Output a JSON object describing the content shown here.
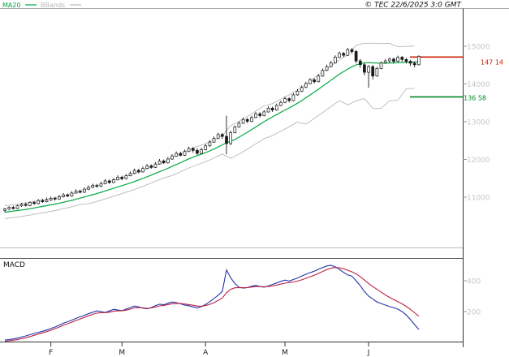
{
  "header": {
    "legend": [
      {
        "label": "MA20",
        "color": "#00A844"
      },
      {
        "label": "BBands",
        "color": "#B8B8B8"
      }
    ],
    "timestamp": "© TEC 22/6/2025 3:0 GMT"
  },
  "chart_data": {
    "type": "candlestick",
    "title": "",
    "xlabel": "",
    "ylabel": "",
    "price_panel": {
      "ylim": [
        9650,
        16000
      ],
      "yticks": [
        {
          "label": "15000",
          "value": 15000
        },
        {
          "label": "14000",
          "value": 14000
        },
        {
          "label": "13000",
          "value": 13000
        },
        {
          "label": "12000",
          "value": 12000
        },
        {
          "label": "11000",
          "value": 11000
        }
      ],
      "levels": [
        {
          "label": "147 14",
          "value": 14714,
          "color": "#CC2200"
        },
        {
          "label": "136 58",
          "value": 13658,
          "color": "#008822"
        }
      ],
      "candle_color": "#1a1a1a",
      "candles": [
        [
          10650,
          10720,
          10600,
          10690
        ],
        [
          10690,
          10760,
          10650,
          10730
        ],
        [
          10730,
          10770,
          10670,
          10700
        ],
        [
          10700,
          10800,
          10680,
          10770
        ],
        [
          10770,
          10850,
          10740,
          10810
        ],
        [
          10810,
          10860,
          10750,
          10780
        ],
        [
          10780,
          10890,
          10760,
          10860
        ],
        [
          10860,
          10900,
          10800,
          10830
        ],
        [
          10830,
          10950,
          10810,
          10910
        ],
        [
          10910,
          10960,
          10850,
          10880
        ],
        [
          10880,
          10990,
          10860,
          10930
        ],
        [
          10930,
          11020,
          10900,
          10970
        ],
        [
          10970,
          11010,
          10910,
          10950
        ],
        [
          10950,
          11060,
          10930,
          11010
        ],
        [
          11010,
          11110,
          10990,
          11060
        ],
        [
          11060,
          11100,
          11000,
          11030
        ],
        [
          11030,
          11160,
          11010,
          11110
        ],
        [
          11110,
          11210,
          11090,
          11160
        ],
        [
          11160,
          11200,
          11100,
          11130
        ],
        [
          11130,
          11260,
          11110,
          11210
        ],
        [
          11210,
          11310,
          11190,
          11260
        ],
        [
          11260,
          11360,
          11240,
          11310
        ],
        [
          11310,
          11350,
          11250,
          11290
        ],
        [
          11290,
          11410,
          11270,
          11360
        ],
        [
          11360,
          11480,
          11340,
          11430
        ],
        [
          11430,
          11470,
          11350,
          11390
        ],
        [
          11390,
          11510,
          11370,
          11460
        ],
        [
          11460,
          11580,
          11440,
          11530
        ],
        [
          11530,
          11570,
          11450,
          11490
        ],
        [
          11490,
          11620,
          11470,
          11570
        ],
        [
          11570,
          11680,
          11550,
          11630
        ],
        [
          11630,
          11760,
          11610,
          11710
        ],
        [
          11710,
          11750,
          11630,
          11670
        ],
        [
          11670,
          11810,
          11650,
          11760
        ],
        [
          11760,
          11880,
          11740,
          11830
        ],
        [
          11830,
          11870,
          11750,
          11790
        ],
        [
          11790,
          11930,
          11770,
          11880
        ],
        [
          11880,
          12010,
          11860,
          11960
        ],
        [
          11960,
          12000,
          11880,
          11910
        ],
        [
          11910,
          12060,
          11890,
          12010
        ],
        [
          12010,
          12140,
          11990,
          12090
        ],
        [
          12090,
          12210,
          12070,
          12160
        ],
        [
          12160,
          12200,
          12080,
          12110
        ],
        [
          12110,
          12260,
          12090,
          12210
        ],
        [
          12210,
          12340,
          12190,
          12290
        ],
        [
          12290,
          12330,
          12180,
          12240
        ],
        [
          12240,
          12290,
          12120,
          12160
        ],
        [
          12160,
          12310,
          12140,
          12260
        ],
        [
          12260,
          12410,
          12240,
          12360
        ],
        [
          12360,
          12510,
          12340,
          12460
        ],
        [
          12460,
          12610,
          12440,
          12560
        ],
        [
          12560,
          12710,
          12540,
          12660
        ],
        [
          12660,
          12700,
          12540,
          12610
        ],
        [
          12610,
          13160,
          12140,
          12420
        ],
        [
          12420,
          12760,
          12380,
          12710
        ],
        [
          12710,
          12900,
          12690,
          12860
        ],
        [
          12860,
          13010,
          12840,
          12960
        ],
        [
          12960,
          13110,
          12940,
          13060
        ],
        [
          13060,
          13100,
          12960,
          13010
        ],
        [
          13010,
          13160,
          12990,
          13110
        ],
        [
          13110,
          13260,
          13090,
          13210
        ],
        [
          13210,
          13250,
          13110,
          13160
        ],
        [
          13160,
          13310,
          13140,
          13260
        ],
        [
          13260,
          13410,
          13240,
          13360
        ],
        [
          13360,
          13400,
          13260,
          13310
        ],
        [
          13310,
          13480,
          13290,
          13430
        ],
        [
          13430,
          13560,
          13410,
          13510
        ],
        [
          13510,
          13660,
          13490,
          13610
        ],
        [
          13610,
          13650,
          13510,
          13560
        ],
        [
          13560,
          13760,
          13540,
          13710
        ],
        [
          13710,
          13860,
          13690,
          13810
        ],
        [
          13810,
          13960,
          13790,
          13910
        ],
        [
          13910,
          14060,
          13890,
          14010
        ],
        [
          14010,
          14160,
          13990,
          14110
        ],
        [
          14110,
          14150,
          14010,
          14060
        ],
        [
          14060,
          14260,
          14040,
          14210
        ],
        [
          14210,
          14410,
          14190,
          14360
        ],
        [
          14360,
          14510,
          14340,
          14460
        ],
        [
          14460,
          14610,
          14440,
          14560
        ],
        [
          14560,
          14760,
          14540,
          14710
        ],
        [
          14710,
          14860,
          14690,
          14810
        ],
        [
          14810,
          14850,
          14710,
          14760
        ],
        [
          14760,
          14960,
          14740,
          14910
        ],
        [
          14910,
          14950,
          14800,
          14860
        ],
        [
          14860,
          14900,
          14550,
          14610
        ],
        [
          14610,
          14660,
          14430,
          14510
        ],
        [
          14510,
          14550,
          14230,
          14310
        ],
        [
          14310,
          14500,
          13900,
          14460
        ],
        [
          14460,
          14500,
          14120,
          14210
        ],
        [
          14210,
          14450,
          14190,
          14410
        ],
        [
          14410,
          14600,
          14390,
          14560
        ],
        [
          14560,
          14660,
          14540,
          14610
        ],
        [
          14610,
          14700,
          14560,
          14660
        ],
        [
          14660,
          14700,
          14540,
          14600
        ],
        [
          14600,
          14750,
          14580,
          14710
        ],
        [
          14710,
          14740,
          14590,
          14650
        ],
        [
          14650,
          14690,
          14540,
          14600
        ],
        [
          14600,
          14640,
          14480,
          14550
        ],
        [
          14550,
          14600,
          14440,
          14510
        ],
        [
          14510,
          14760,
          14490,
          14730
        ]
      ],
      "ma20": {
        "color": "#00A844",
        "values": [
          10600,
          10615,
          10630,
          10645,
          10660,
          10675,
          10695,
          10715,
          10735,
          10755,
          10775,
          10795,
          10815,
          10840,
          10865,
          10890,
          10915,
          10945,
          10975,
          11005,
          11035,
          11065,
          11095,
          11130,
          11165,
          11200,
          11235,
          11270,
          11305,
          11340,
          11375,
          11415,
          11455,
          11495,
          11540,
          11585,
          11630,
          11675,
          11720,
          11765,
          11815,
          11865,
          11915,
          11965,
          12015,
          12060,
          12100,
          12140,
          12180,
          12225,
          12275,
          12330,
          12385,
          12440,
          12480,
          12530,
          12590,
          12655,
          12720,
          12790,
          12860,
          12930,
          13000,
          13065,
          13130,
          13190,
          13250,
          13310,
          13365,
          13425,
          13490,
          13560,
          13635,
          13710,
          13785,
          13860,
          13940,
          14020,
          14100,
          14180,
          14260,
          14330,
          14395,
          14455,
          14505,
          14540,
          14560,
          14565,
          14560,
          14555,
          14550,
          14550,
          14555,
          14560,
          14565,
          14570,
          14575,
          14580,
          14585,
          14590
        ]
      },
      "bollinger": {
        "color": "#B8B8B8",
        "step": 2,
        "upper": [
          10770,
          10800,
          10830,
          10865,
          10905,
          10945,
          10985,
          11035,
          11085,
          11145,
          11245,
          11305,
          11375,
          11445,
          11515,
          11585,
          11665,
          11750,
          11840,
          11930,
          12055,
          12155,
          12255,
          12340,
          12420,
          12515,
          12625,
          12900,
          13010,
          13140,
          13280,
          13420,
          13480,
          13600,
          13715,
          13840,
          13985,
          14165,
          14320,
          14480,
          14640,
          14775,
          15025,
          15080,
          15080,
          15070,
          15075,
          14985,
          14995,
          15005
        ],
        "lower": [
          10430,
          10460,
          10490,
          10525,
          10565,
          10605,
          10645,
          10695,
          10745,
          10805,
          10825,
          10885,
          10955,
          11025,
          11095,
          11165,
          11245,
          11330,
          11420,
          11510,
          11575,
          11675,
          11775,
          11860,
          11940,
          12035,
          12145,
          12030,
          12140,
          12270,
          12410,
          12550,
          12630,
          12750,
          12865,
          12990,
          12935,
          13085,
          13240,
          13400,
          13560,
          13445,
          13555,
          13610,
          13360,
          13350,
          13555,
          13565,
          13875,
          13885
        ]
      }
    },
    "macd_panel": {
      "label": "MACD",
      "ylim": [
        -50,
        550
      ],
      "yticks": [
        {
          "label": "400",
          "value": 400
        },
        {
          "label": "200",
          "value": 200
        }
      ],
      "macd": {
        "color": "#2233AA",
        "values": [
          15,
          18,
          22,
          28,
          35,
          42,
          50,
          58,
          65,
          72,
          80,
          90,
          100,
          112,
          124,
          134,
          144,
          156,
          166,
          176,
          186,
          196,
          204,
          200,
          194,
          204,
          214,
          210,
          206,
          216,
          226,
          236,
          230,
          222,
          218,
          226,
          238,
          248,
          244,
          254,
          262,
          258,
          250,
          242,
          238,
          230,
          224,
          232,
          246,
          264,
          284,
          306,
          330,
          470,
          420,
          382,
          358,
          352,
          356,
          364,
          370,
          362,
          358,
          366,
          376,
          386,
          396,
          404,
          398,
          408,
          418,
          430,
          442,
          452,
          462,
          474,
          486,
          496,
          500,
          490,
          474,
          454,
          438,
          430,
          400,
          368,
          330,
          300,
          282,
          262,
          252,
          242,
          232,
          226,
          216,
          200,
          178,
          148,
          116,
          84
        ]
      },
      "signal": {
        "color": "#BB2244",
        "values": [
          8,
          10,
          14,
          18,
          24,
          30,
          38,
          46,
          54,
          62,
          70,
          79,
          89,
          100,
          111,
          121,
          131,
          142,
          152,
          162,
          172,
          182,
          190,
          193,
          193,
          196,
          202,
          205,
          205,
          209,
          216,
          224,
          226,
          224,
          221,
          223,
          229,
          237,
          240,
          245,
          251,
          253,
          252,
          249,
          245,
          241,
          236,
          235,
          239,
          247,
          258,
          272,
          288,
          322,
          344,
          354,
          356,
          355,
          356,
          359,
          362,
          362,
          361,
          362,
          366,
          372,
          378,
          384,
          388,
          392,
          398,
          406,
          416,
          426,
          436,
          448,
          460,
          472,
          482,
          486,
          484,
          478,
          468,
          458,
          444,
          426,
          404,
          382,
          362,
          344,
          326,
          308,
          292,
          278,
          264,
          250,
          234,
          214,
          192,
          170
        ]
      }
    },
    "xaxis": {
      "months": [
        {
          "label": "F",
          "index": 11
        },
        {
          "label": "M",
          "index": 28
        },
        {
          "label": "A",
          "index": 48
        },
        {
          "label": "M",
          "index": 67
        },
        {
          "label": "J",
          "index": 87
        }
      ]
    }
  }
}
